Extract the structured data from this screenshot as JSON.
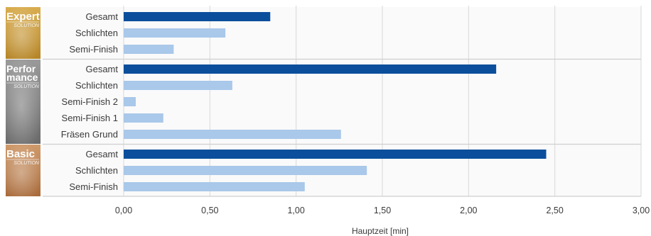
{
  "chart_data": {
    "type": "bar",
    "orientation": "horizontal",
    "xlabel": "Hauptzeit [min]",
    "xlim": [
      0,
      3
    ],
    "xticks": [
      "0,00",
      "0,50",
      "1,00",
      "1,50",
      "2,00",
      "2,50",
      "3,00"
    ],
    "grid": true,
    "colors": {
      "total": "#0b4f9c",
      "component": "#a9c8ea",
      "group_bg": "#fafafa",
      "separator": "#cfcfcf"
    },
    "groups": [
      {
        "badge": {
          "lines": [
            "Expert"
          ],
          "sub": "SOLUTION",
          "color_top": "#d9ad4f",
          "color_bottom": "#b58425"
        },
        "bars": [
          {
            "label": "Gesamt",
            "value": 0.85,
            "kind": "total"
          },
          {
            "label": "Schlichten",
            "value": 0.59,
            "kind": "component"
          },
          {
            "label": "Semi-Finish",
            "value": 0.29,
            "kind": "component"
          }
        ]
      },
      {
        "badge": {
          "lines": [
            "Perfor",
            "mance"
          ],
          "sub": "SOLUTION",
          "color_top": "#9a9a9a",
          "color_bottom": "#6a6a6a"
        },
        "bars": [
          {
            "label": "Gesamt",
            "value": 2.16,
            "kind": "total"
          },
          {
            "label": "Schlichten",
            "value": 0.63,
            "kind": "component"
          },
          {
            "label": "Semi-Finish 2",
            "value": 0.07,
            "kind": "component"
          },
          {
            "label": "Semi-Finish 1",
            "value": 0.23,
            "kind": "component"
          },
          {
            "label": "Fräsen Grund",
            "value": 1.26,
            "kind": "component"
          }
        ]
      },
      {
        "badge": {
          "lines": [
            "Basic"
          ],
          "sub": "SOLUTION",
          "color_top": "#cf9a6b",
          "color_bottom": "#a86a3a"
        },
        "bars": [
          {
            "label": "Gesamt",
            "value": 2.45,
            "kind": "total"
          },
          {
            "label": "Schlichten",
            "value": 1.41,
            "kind": "component"
          },
          {
            "label": "Semi-Finish",
            "value": 1.05,
            "kind": "component"
          }
        ]
      }
    ]
  }
}
